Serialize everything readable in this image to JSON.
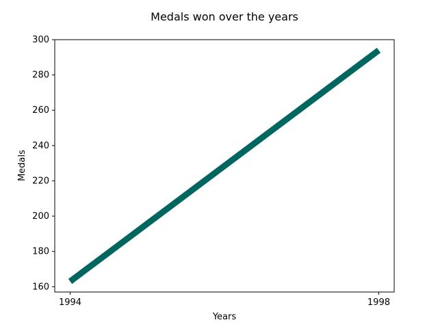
{
  "chart_data": {
    "type": "line",
    "title": "Medals won over the years",
    "xlabel": "Years",
    "ylabel": "Medals",
    "x": [
      1994,
      1998
    ],
    "x_tick_labels": [
      "1994",
      "1998"
    ],
    "xlim": [
      1993.8,
      1998.2
    ],
    "ylim": [
      157,
      300
    ],
    "y_ticks": [
      160,
      180,
      200,
      220,
      240,
      260,
      280,
      300
    ],
    "series": [
      {
        "values": [
          163,
          294
        ]
      }
    ],
    "line_color": "#006660",
    "grid": false
  }
}
